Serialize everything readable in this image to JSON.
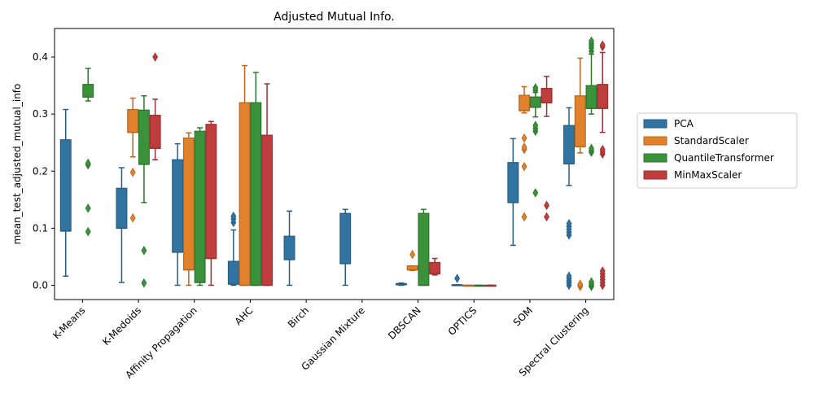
{
  "chart_data": {
    "type": "box",
    "title": "Adjusted Mutual Info.",
    "xlabel": "",
    "ylabel": "mean_test_adjusted_mutual_info",
    "ylim": [
      -0.025,
      0.45
    ],
    "yticks": [
      "0.0",
      "0.1",
      "0.2",
      "0.3",
      "0.4"
    ],
    "ytick_values": [
      0.0,
      0.1,
      0.2,
      0.3,
      0.4
    ],
    "grid": false,
    "legend_position": "right",
    "categories": [
      "K-Means",
      "K-Medoids",
      "Affinity Propagation",
      "AHC",
      "Birch",
      "Gaussian Mixture",
      "DBSCAN",
      "OPTICS",
      "SOM",
      "Spectral Clustering"
    ],
    "series": [
      {
        "name": "PCA",
        "color": "#3274a1",
        "boxes": [
          {
            "q1": 0.095,
            "med": 0.095,
            "q3": 0.255,
            "lo": 0.016,
            "hi": 0.308,
            "out": []
          },
          {
            "q1": 0.1,
            "med": 0.1,
            "q3": 0.17,
            "lo": 0.005,
            "hi": 0.206,
            "out": []
          },
          {
            "q1": 0.058,
            "med": 0.058,
            "q3": 0.22,
            "lo": 0.0,
            "hi": 0.248,
            "out": []
          },
          {
            "q1": 0.002,
            "med": 0.002,
            "q3": 0.042,
            "lo": 0.0,
            "hi": 0.097,
            "out": [
              0.11,
              0.116,
              0.121
            ]
          },
          {
            "q1": 0.045,
            "med": 0.045,
            "q3": 0.086,
            "lo": 0.0,
            "hi": 0.13,
            "out": []
          },
          {
            "q1": 0.038,
            "med": 0.038,
            "q3": 0.126,
            "lo": 0.0,
            "hi": 0.133,
            "out": []
          },
          {
            "q1": 0.001,
            "med": 0.001,
            "q3": 0.003,
            "lo": 0.0,
            "hi": 0.004,
            "out": []
          },
          {
            "q1": 0.0,
            "med": 0.0,
            "q3": 0.001,
            "lo": 0.0,
            "hi": 0.001,
            "out": [
              0.012
            ]
          },
          {
            "q1": 0.145,
            "med": 0.145,
            "q3": 0.215,
            "lo": 0.07,
            "hi": 0.257,
            "out": []
          },
          {
            "q1": 0.213,
            "med": 0.213,
            "q3": 0.28,
            "lo": 0.175,
            "hi": 0.311,
            "out": [
              0.0,
              0.004,
              0.008,
              0.012,
              0.016,
              0.088,
              0.093,
              0.098,
              0.103,
              0.108
            ]
          }
        ]
      },
      {
        "name": "StandardScaler",
        "color": "#e1812c",
        "boxes": [
          null,
          {
            "q1": 0.268,
            "med": 0.268,
            "q3": 0.308,
            "lo": 0.225,
            "hi": 0.328,
            "out": [
              0.118,
              0.198
            ]
          },
          {
            "q1": 0.027,
            "med": 0.027,
            "q3": 0.258,
            "lo": 0.0,
            "hi": 0.267,
            "out": []
          },
          {
            "q1": 0.0,
            "med": 0.0,
            "q3": 0.32,
            "lo": 0.0,
            "hi": 0.385,
            "out": []
          },
          null,
          null,
          {
            "q1": 0.027,
            "med": 0.027,
            "q3": 0.034,
            "lo": 0.026,
            "hi": 0.034,
            "out": [
              0.054
            ]
          },
          {
            "q1": 0.0,
            "med": 0.0,
            "q3": 0.0,
            "lo": 0.0,
            "hi": 0.0,
            "out": []
          },
          {
            "q1": 0.306,
            "med": 0.306,
            "q3": 0.333,
            "lo": 0.302,
            "hi": 0.348,
            "out": [
              0.12,
              0.208,
              0.238,
              0.242,
              0.258
            ]
          },
          {
            "q1": 0.243,
            "med": 0.243,
            "q3": 0.332,
            "lo": 0.232,
            "hi": 0.398,
            "out": [
              -0.002,
              0.0,
              0.002
            ]
          }
        ]
      },
      {
        "name": "QuantileTransformer",
        "color": "#3a923a",
        "boxes": [
          {
            "q1": 0.33,
            "med": 0.33,
            "q3": 0.352,
            "lo": 0.323,
            "hi": 0.38,
            "out": [
              0.094,
              0.135,
              0.211,
              0.214
            ]
          },
          {
            "q1": 0.212,
            "med": 0.212,
            "q3": 0.307,
            "lo": 0.145,
            "hi": 0.332,
            "out": [
              0.004,
              0.061
            ]
          },
          {
            "q1": 0.005,
            "med": 0.005,
            "q3": 0.27,
            "lo": 0.0,
            "hi": 0.276,
            "out": []
          },
          {
            "q1": 0.0,
            "med": 0.0,
            "q3": 0.32,
            "lo": 0.0,
            "hi": 0.373,
            "out": []
          },
          null,
          null,
          {
            "q1": 0.0,
            "med": 0.0,
            "q3": 0.126,
            "lo": 0.0,
            "hi": 0.133,
            "out": []
          },
          {
            "q1": 0.0,
            "med": 0.0,
            "q3": 0.0,
            "lo": 0.0,
            "hi": 0.0,
            "out": []
          },
          {
            "q1": 0.312,
            "med": 0.312,
            "q3": 0.33,
            "lo": 0.295,
            "hi": 0.338,
            "out": [
              0.162,
              0.27,
              0.275,
              0.28,
              0.342,
              0.346
            ]
          },
          {
            "q1": 0.31,
            "med": 0.31,
            "q3": 0.35,
            "lo": 0.3,
            "hi": 0.405,
            "out": [
              -0.002,
              0.0,
              0.003,
              0.006,
              0.233,
              0.236,
              0.24,
              0.41,
              0.416,
              0.42,
              0.424,
              0.428
            ]
          }
        ]
      },
      {
        "name": "MinMaxScaler",
        "color": "#c03d3e",
        "boxes": [
          null,
          {
            "q1": 0.24,
            "med": 0.24,
            "q3": 0.298,
            "lo": 0.22,
            "hi": 0.326,
            "out": [
              0.4
            ]
          },
          {
            "q1": 0.047,
            "med": 0.047,
            "q3": 0.282,
            "lo": 0.0,
            "hi": 0.287,
            "out": []
          },
          {
            "q1": 0.0,
            "med": 0.0,
            "q3": 0.263,
            "lo": 0.0,
            "hi": 0.353,
            "out": []
          },
          null,
          null,
          {
            "q1": 0.02,
            "med": 0.02,
            "q3": 0.04,
            "lo": 0.018,
            "hi": 0.047,
            "out": []
          },
          {
            "q1": 0.0,
            "med": 0.0,
            "q3": 0.0,
            "lo": 0.0,
            "hi": 0.0,
            "out": []
          },
          {
            "q1": 0.32,
            "med": 0.32,
            "q3": 0.345,
            "lo": 0.296,
            "hi": 0.366,
            "out": [
              0.12,
              0.14
            ]
          },
          {
            "q1": 0.31,
            "med": 0.31,
            "q3": 0.352,
            "lo": 0.268,
            "hi": 0.408,
            "out": [
              0.0,
              0.005,
              0.01,
              0.015,
              0.02,
              0.025,
              0.23,
              0.234,
              0.238,
              0.418,
              0.421
            ]
          }
        ]
      }
    ]
  }
}
